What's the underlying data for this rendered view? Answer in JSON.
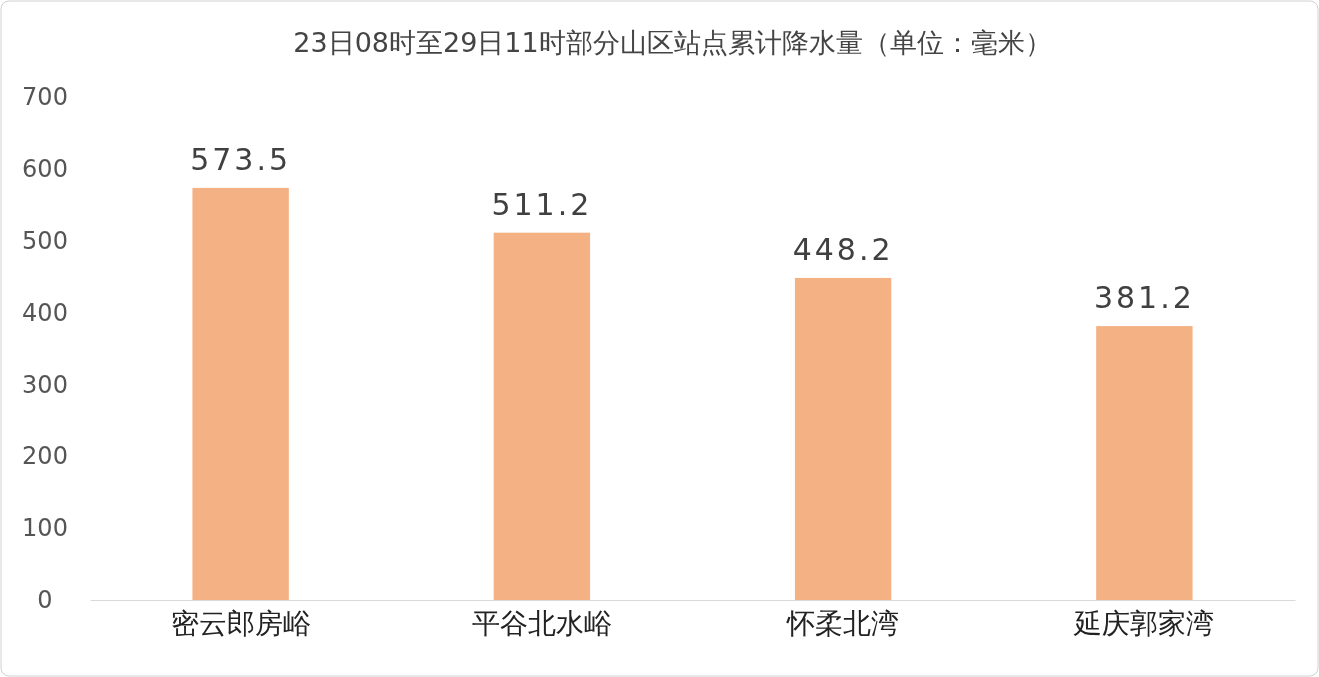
{
  "chart_data": {
    "type": "bar",
    "title": "23日08时至29日11时部分山区站点累计降水量（单位：毫米）",
    "categories": [
      "密云郎房峪",
      "平谷北水峪",
      "怀柔北湾",
      "延庆郭家湾"
    ],
    "values": [
      573.5,
      511.2,
      448.2,
      381.2
    ],
    "color": "#f4b183",
    "ylim": [
      0,
      700
    ],
    "yticks": [
      0,
      100,
      200,
      300,
      400,
      500,
      600,
      700
    ],
    "grid": false,
    "data_labels": true
  }
}
